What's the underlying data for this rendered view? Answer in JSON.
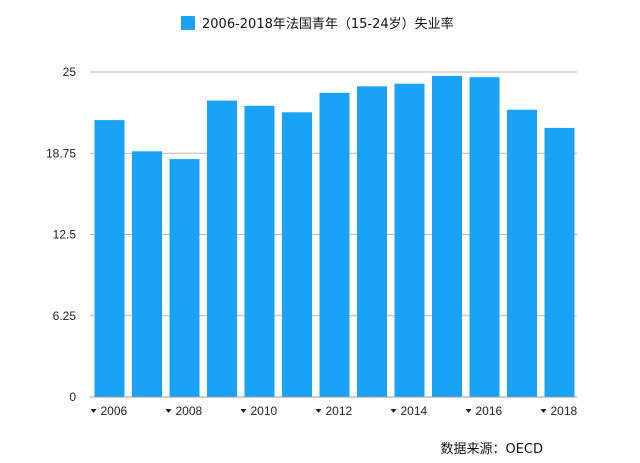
{
  "chart_data": {
    "type": "bar",
    "legend": {
      "label": "2006-2018年法国青年（15-24岁）失业率",
      "placement": "top-center"
    },
    "series": [
      {
        "name": "2006-2018年法国青年（15-24岁）失业率",
        "color": "#1aa3f6",
        "values": [
          21.3,
          18.9,
          18.3,
          22.8,
          22.4,
          21.9,
          23.4,
          23.9,
          24.1,
          24.7,
          24.6,
          22.1,
          20.7
        ]
      }
    ],
    "categories": [
      "2006",
      "2007",
      "2008",
      "2009",
      "2010",
      "2011",
      "2012",
      "2013",
      "2014",
      "2015",
      "2016",
      "2017",
      "2018"
    ],
    "x_tick_labels": [
      "2006",
      "2008",
      "2010",
      "2012",
      "2014",
      "2016",
      "2018"
    ],
    "y_ticks": [
      "0",
      "6.25",
      "12.5",
      "18.75",
      "25"
    ],
    "y_tick_values": [
      0,
      6.25,
      12.5,
      18.75,
      25
    ],
    "ylim": [
      0,
      25
    ],
    "grid": "horizontal",
    "source": "数据来源：OECD"
  }
}
